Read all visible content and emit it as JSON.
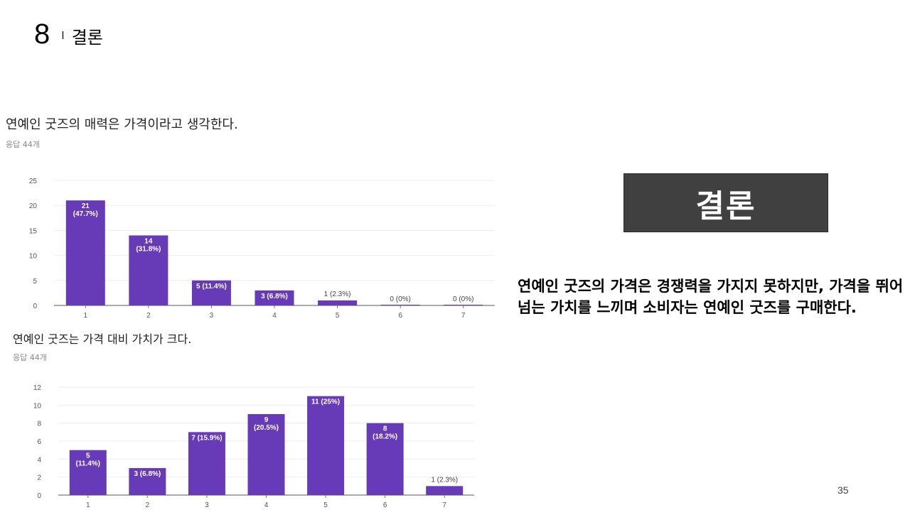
{
  "header": {
    "slide_number": "8",
    "separator": "I",
    "title": "결론"
  },
  "chart_data": [
    {
      "type": "bar",
      "title": "연예인 굿즈의 매력은 가격이라고 생각한다.",
      "subtitle": "응답 44개",
      "categories": [
        "1",
        "2",
        "3",
        "4",
        "5",
        "6",
        "7"
      ],
      "values": [
        21,
        14,
        5,
        3,
        1,
        0,
        0
      ],
      "labels": [
        "21\n(47.7%)",
        "14\n(31.8%)",
        "5 (11.4%)",
        "3 (6.8%)",
        "1 (2.3%)",
        "0 (0%)",
        "0 (0%)"
      ],
      "yticks": [
        "0",
        "5",
        "10",
        "15",
        "20",
        "25"
      ],
      "ylim": [
        0,
        25
      ],
      "grid": true,
      "bar_color": "#673ab7"
    },
    {
      "type": "bar",
      "title": "연예인 굿즈는 가격 대비 가치가 크다.",
      "subtitle": "응답 44개",
      "categories": [
        "1",
        "2",
        "3",
        "4",
        "5",
        "6",
        "7"
      ],
      "values": [
        5,
        3,
        7,
        9,
        11,
        8,
        1
      ],
      "labels": [
        "5\n(11.4%)",
        "3 (6.8%)",
        "7 (15.9%)",
        "9\n(20.5%)",
        "11 (25%)",
        "8\n(18.2%)",
        "1 (2.3%)"
      ],
      "yticks": [
        "0",
        "2",
        "4",
        "6",
        "8",
        "10",
        "12"
      ],
      "ylim": [
        0,
        12
      ],
      "grid": true,
      "bar_color": "#673ab7"
    }
  ],
  "conclusion": {
    "box_label": "결론",
    "text": "연예인 굿즈의 가격은 경쟁력을 가지지 못하지만, 가격을 뛰어넘는 가치를 느끼며 소비자는 연예인 굿즈를 구매한다."
  },
  "page_number": "35"
}
